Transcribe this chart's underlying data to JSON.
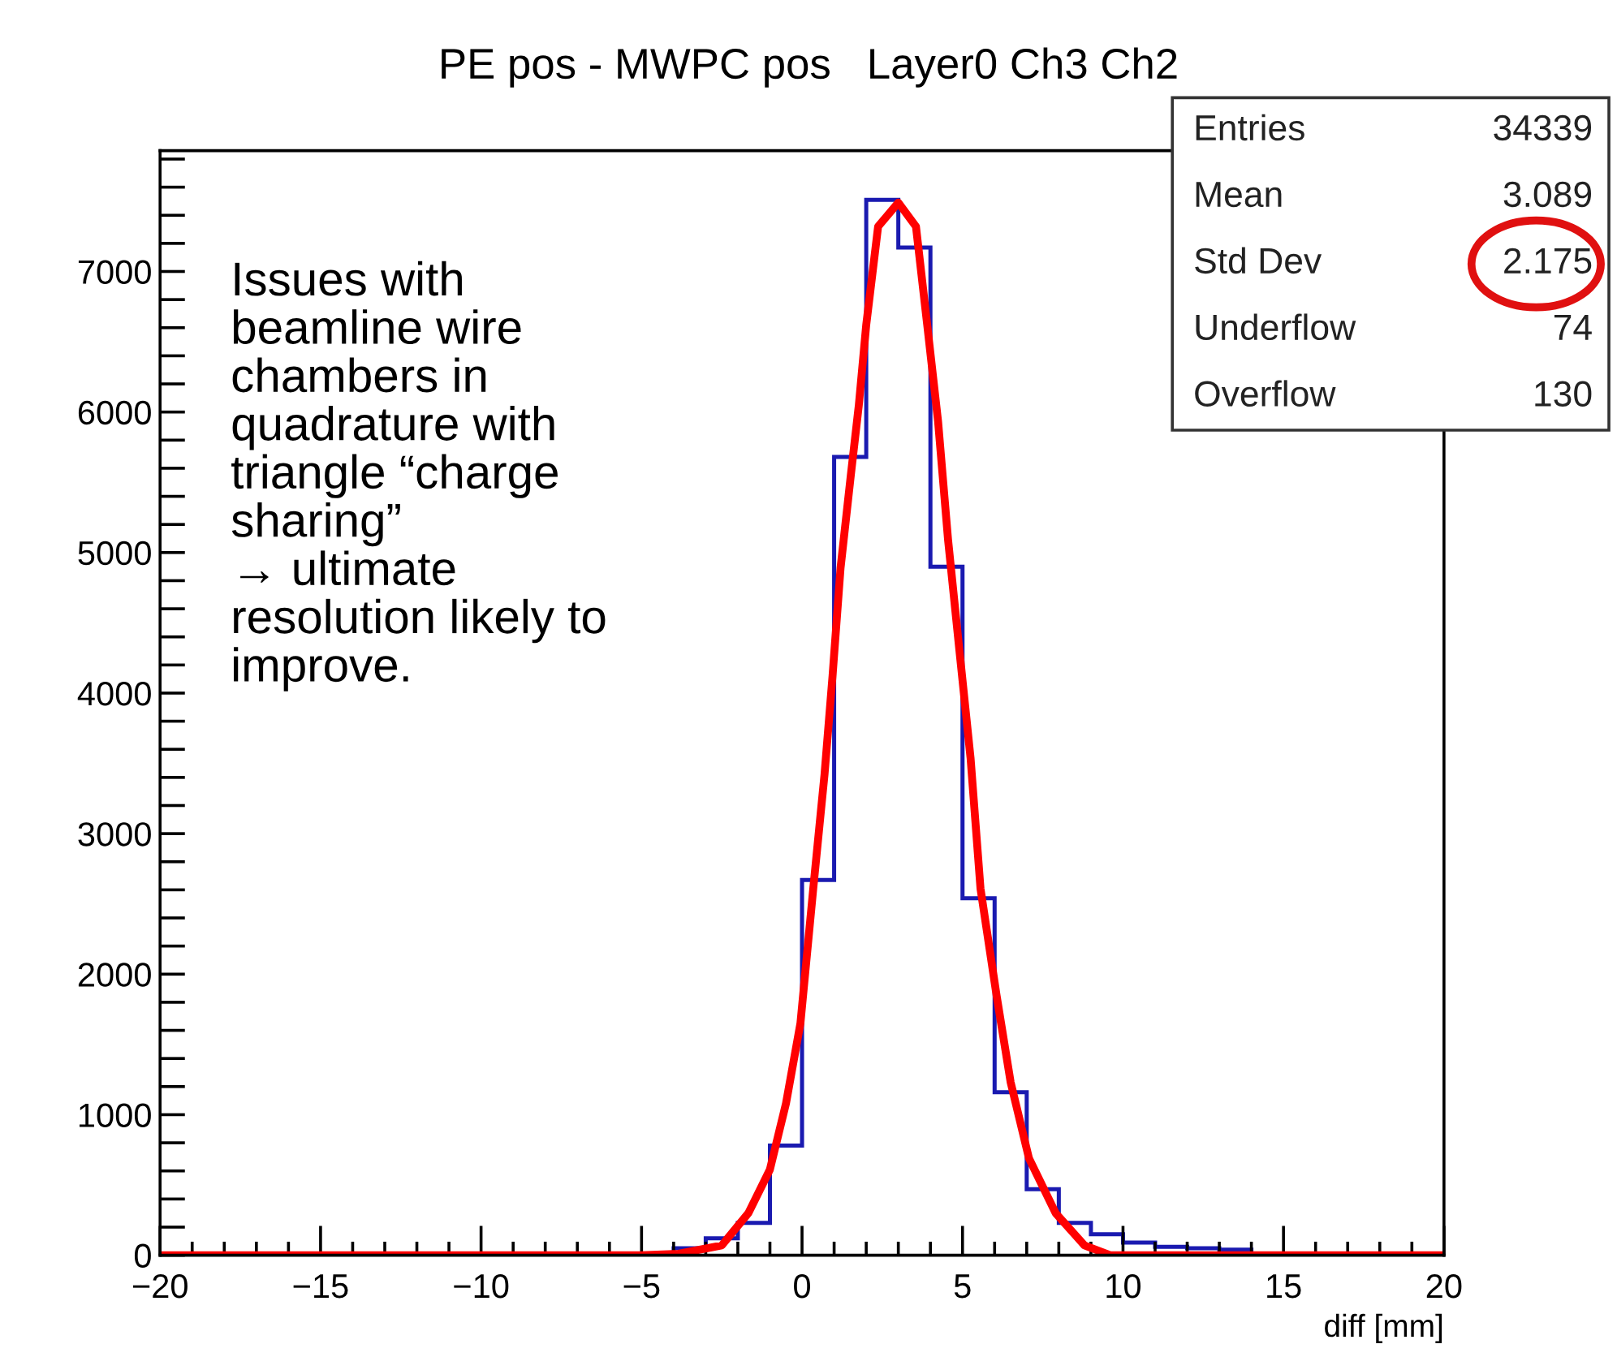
{
  "chart_data": {
    "type": "histogram",
    "title": "PE pos - MWPC pos   Layer0 Ch3 Ch2",
    "xlabel": "diff [mm]",
    "xlim": [
      -20,
      20
    ],
    "ylim": [
      0,
      7860
    ],
    "xticks": [
      {
        "value": -20,
        "label": "−20"
      },
      {
        "value": -19,
        "label": null
      },
      {
        "value": -18,
        "label": null
      },
      {
        "value": -17,
        "label": null
      },
      {
        "value": -16,
        "label": null
      },
      {
        "value": -15,
        "label": "−15"
      },
      {
        "value": -14,
        "label": null
      },
      {
        "value": -13,
        "label": null
      },
      {
        "value": -12,
        "label": null
      },
      {
        "value": -11,
        "label": null
      },
      {
        "value": -10,
        "label": "−10"
      },
      {
        "value": -9,
        "label": null
      },
      {
        "value": -8,
        "label": null
      },
      {
        "value": -7,
        "label": null
      },
      {
        "value": -6,
        "label": null
      },
      {
        "value": -5,
        "label": "−5"
      },
      {
        "value": -4,
        "label": null
      },
      {
        "value": -3,
        "label": null
      },
      {
        "value": -2,
        "label": null
      },
      {
        "value": -1,
        "label": null
      },
      0,
      {
        "value": 1,
        "label": null
      },
      {
        "value": 2,
        "label": null
      },
      {
        "value": 3,
        "label": null
      },
      {
        "value": 4,
        "label": null
      },
      5,
      {
        "value": 6,
        "label": null
      },
      {
        "value": 7,
        "label": null
      },
      {
        "value": 8,
        "label": null
      },
      {
        "value": 9,
        "label": null
      },
      10,
      {
        "value": 11,
        "label": null
      },
      {
        "value": 12,
        "label": null
      },
      {
        "value": 13,
        "label": null
      },
      {
        "value": 14,
        "label": null
      },
      15,
      {
        "value": 16,
        "label": null
      },
      {
        "value": 17,
        "label": null
      },
      {
        "value": 18,
        "label": null
      },
      {
        "value": 19,
        "label": null
      },
      20
    ],
    "yticks": [
      0,
      {
        "value": 200,
        "label": null
      },
      {
        "value": 400,
        "label": null
      },
      {
        "value": 600,
        "label": null
      },
      {
        "value": 800,
        "label": null
      },
      1000,
      {
        "value": 1200,
        "label": null
      },
      {
        "value": 1400,
        "label": null
      },
      {
        "value": 1600,
        "label": null
      },
      {
        "value": 1800,
        "label": null
      },
      2000,
      {
        "value": 2200,
        "label": null
      },
      {
        "value": 2400,
        "label": null
      },
      {
        "value": 2600,
        "label": null
      },
      {
        "value": 2800,
        "label": null
      },
      3000,
      {
        "value": 3200,
        "label": null
      },
      {
        "value": 3400,
        "label": null
      },
      {
        "value": 3600,
        "label": null
      },
      {
        "value": 3800,
        "label": null
      },
      4000,
      {
        "value": 4200,
        "label": null
      },
      {
        "value": 4400,
        "label": null
      },
      {
        "value": 4600,
        "label": null
      },
      {
        "value": 4800,
        "label": null
      },
      5000,
      {
        "value": 5200,
        "label": null
      },
      {
        "value": 5400,
        "label": null
      },
      {
        "value": 5600,
        "label": null
      },
      {
        "value": 5800,
        "label": null
      },
      6000,
      {
        "value": 6200,
        "label": null
      },
      {
        "value": 6400,
        "label": null
      },
      {
        "value": 6600,
        "label": null
      },
      {
        "value": 6800,
        "label": null
      },
      7000,
      {
        "value": 7200,
        "label": null
      },
      {
        "value": 7400,
        "label": null
      },
      {
        "value": 7600,
        "label": null
      },
      {
        "value": 7800,
        "label": null
      }
    ],
    "grid": false,
    "series": [
      {
        "color": "#1a1ab0",
        "bins": [
          -20,
          -19,
          -18,
          -17,
          -16,
          -15,
          -14,
          -13,
          -12,
          -11,
          -10,
          -9,
          -8,
          -7,
          -6,
          -5,
          -4,
          -3,
          -2,
          -1,
          0,
          1,
          2,
          3,
          4,
          5,
          6,
          7,
          8,
          9,
          10,
          11,
          12,
          13,
          14,
          15,
          16,
          17,
          18,
          19,
          20
        ],
        "values": [
          0,
          0,
          0,
          0,
          0,
          0,
          0,
          0,
          0,
          0,
          0,
          0,
          0,
          0,
          0,
          0,
          50,
          120,
          230,
          780,
          2670,
          5680,
          7510,
          7170,
          4900,
          2540,
          1160,
          470,
          230,
          150,
          90,
          60,
          50,
          40,
          0,
          0,
          0,
          0,
          0,
          0
        ]
      },
      {
        "type": "line",
        "color": "#ff0000",
        "x": [
          -20,
          -5,
          -3.85,
          -2.5,
          -1.67,
          -1.0,
          -0.5,
          -0.05,
          0.35,
          0.7,
          0.95,
          1.2,
          1.52,
          1.77,
          2.0,
          2.37,
          3.0,
          3.55,
          3.9,
          4.24,
          4.55,
          4.9,
          5.25,
          5.56,
          6.06,
          6.5,
          7.07,
          7.9,
          8.8,
          9.6,
          11,
          20
        ],
        "values": [
          0,
          0,
          10,
          70,
          300,
          610,
          1080,
          1650,
          2610,
          3420,
          4120,
          4890,
          5550,
          6050,
          6620,
          7320,
          7490,
          7320,
          6620,
          5930,
          5090,
          4310,
          3540,
          2610,
          1850,
          1230,
          690,
          300,
          70,
          0,
          0,
          0
        ]
      }
    ],
    "annotations": [
      "Issues with\nbeamline wire\nchambers in\nquadrature with\ntriangle “charge\nsharing”\n→ ultimate\nresolution likely to\nimprove.",
      "Entries",
      "34339",
      "Mean",
      "3.089",
      "Std Dev",
      "2.175",
      "Underflow",
      "74",
      "Overflow",
      "130"
    ]
  }
}
